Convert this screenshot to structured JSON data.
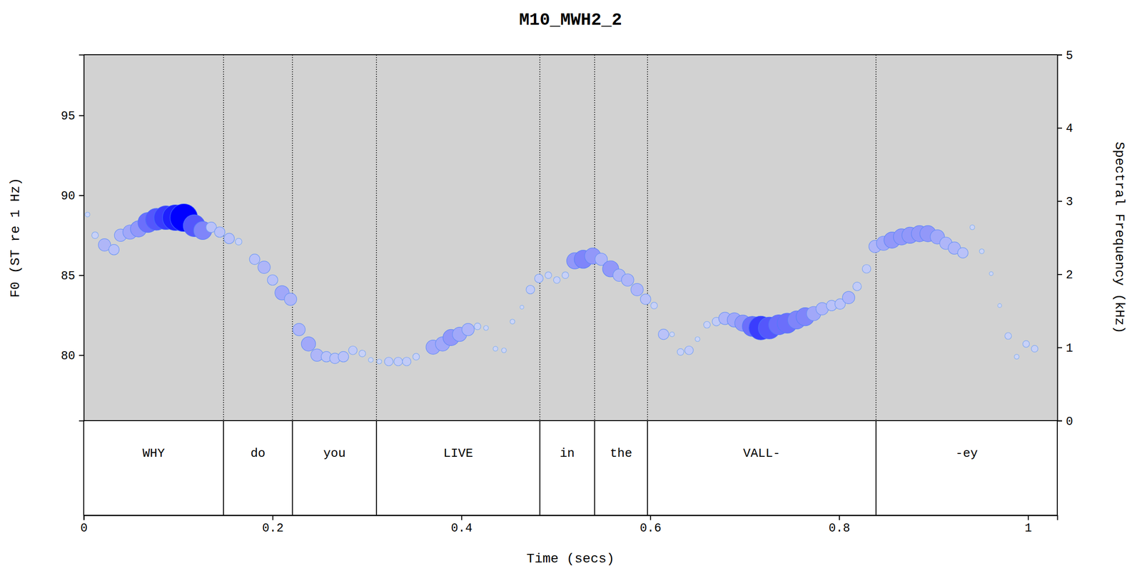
{
  "chart_data": {
    "type": "scatter",
    "title": "M10_MWH2_2",
    "xlabel": "Time (secs)",
    "ylabel": "F0 (ST re 1 Hz)",
    "y2label": "Spectral Frequency (kHz)",
    "marker": "circle",
    "color": "#0000ff",
    "xlim": [
      0,
      1.031
    ],
    "xticks": [
      0,
      0.2,
      0.4,
      0.6,
      0.8,
      1
    ],
    "ylim": [
      75.9,
      98.8
    ],
    "yticks": [
      80,
      85,
      90,
      95
    ],
    "y2lim": [
      0,
      5
    ],
    "y2ticks": [
      0,
      1,
      2,
      3,
      4,
      5
    ],
    "words": [
      "WHY",
      "do",
      "you",
      "LIVE",
      "in",
      "the",
      "VALL-",
      "-ey"
    ],
    "word_bounds": [
      0,
      0.148,
      0.221,
      0.31,
      0.483,
      0.541,
      0.597,
      0.839,
      1.031
    ],
    "x": [
      0.004,
      0.012,
      0.022,
      0.032,
      0.039,
      0.049,
      0.058,
      0.068,
      0.077,
      0.087,
      0.097,
      0.106,
      0.117,
      0.126,
      0.135,
      0.144,
      0.154,
      0.164,
      0.181,
      0.191,
      0.2,
      0.21,
      0.219,
      0.228,
      0.238,
      0.247,
      0.257,
      0.266,
      0.275,
      0.285,
      0.295,
      0.304,
      0.313,
      0.323,
      0.333,
      0.342,
      0.352,
      0.37,
      0.38,
      0.389,
      0.398,
      0.407,
      0.417,
      0.426,
      0.436,
      0.445,
      0.454,
      0.464,
      0.473,
      0.482,
      0.492,
      0.501,
      0.51,
      0.52,
      0.529,
      0.539,
      0.548,
      0.558,
      0.567,
      0.576,
      0.586,
      0.595,
      0.604,
      0.614,
      0.623,
      0.632,
      0.641,
      0.65,
      0.66,
      0.67,
      0.679,
      0.689,
      0.698,
      0.708,
      0.717,
      0.726,
      0.736,
      0.745,
      0.755,
      0.764,
      0.773,
      0.782,
      0.792,
      0.801,
      0.81,
      0.819,
      0.829,
      0.838,
      0.847,
      0.856,
      0.866,
      0.875,
      0.885,
      0.894,
      0.904,
      0.913,
      0.922,
      0.931,
      0.941,
      0.951,
      0.961,
      0.97,
      0.979,
      0.988,
      0.998,
      1.007
    ],
    "values": [
      88.8,
      87.5,
      86.9,
      86.6,
      87.5,
      87.7,
      87.9,
      88.3,
      88.5,
      88.6,
      88.6,
      88.6,
      88.1,
      87.8,
      88.0,
      87.7,
      87.3,
      87.1,
      86.0,
      85.5,
      84.7,
      83.9,
      83.5,
      81.6,
      80.7,
      80.0,
      79.9,
      79.8,
      79.9,
      80.3,
      80.1,
      79.7,
      79.6,
      79.6,
      79.6,
      79.6,
      79.9,
      80.5,
      80.7,
      81.1,
      81.3,
      81.6,
      81.8,
      81.7,
      80.4,
      80.3,
      82.1,
      83.0,
      84.1,
      84.8,
      85.0,
      84.7,
      85.0,
      85.9,
      86.0,
      86.2,
      86.0,
      85.4,
      85.0,
      84.7,
      84.1,
      83.5,
      83.1,
      81.3,
      81.3,
      80.2,
      80.3,
      81.0,
      81.9,
      82.1,
      82.3,
      82.2,
      82.0,
      81.8,
      81.7,
      81.7,
      81.9,
      82.0,
      82.2,
      82.4,
      82.6,
      82.9,
      83.1,
      83.2,
      83.6,
      84.3,
      85.4,
      86.8,
      87.0,
      87.2,
      87.4,
      87.5,
      87.6,
      87.6,
      87.4,
      87.0,
      86.7,
      86.4,
      88.0,
      86.5,
      85.1,
      83.1,
      81.2,
      79.9,
      80.7,
      80.4
    ],
    "sizes": [
      1,
      2,
      5,
      4,
      5,
      6,
      7,
      9,
      10,
      11,
      12,
      13,
      10,
      8,
      4,
      4,
      4,
      2,
      4,
      5,
      4,
      6,
      5,
      5,
      6,
      5,
      4,
      4,
      4,
      3,
      2,
      1,
      1,
      3,
      3,
      3,
      2,
      6,
      6,
      7,
      6,
      5,
      2,
      1,
      1,
      1,
      1,
      0.5,
      3,
      3,
      2,
      2,
      2,
      7,
      8,
      7,
      5,
      7,
      5,
      5,
      5,
      4,
      2,
      4,
      1,
      2,
      3,
      1,
      2,
      3,
      5,
      6,
      7,
      9,
      11,
      10,
      9,
      9,
      8,
      8,
      6,
      5,
      4,
      4,
      5,
      3,
      3,
      5,
      6,
      7,
      7,
      7,
      7,
      7,
      6,
      5,
      5,
      4,
      1,
      1,
      0.5,
      0.5,
      2,
      1,
      2,
      2
    ]
  }
}
